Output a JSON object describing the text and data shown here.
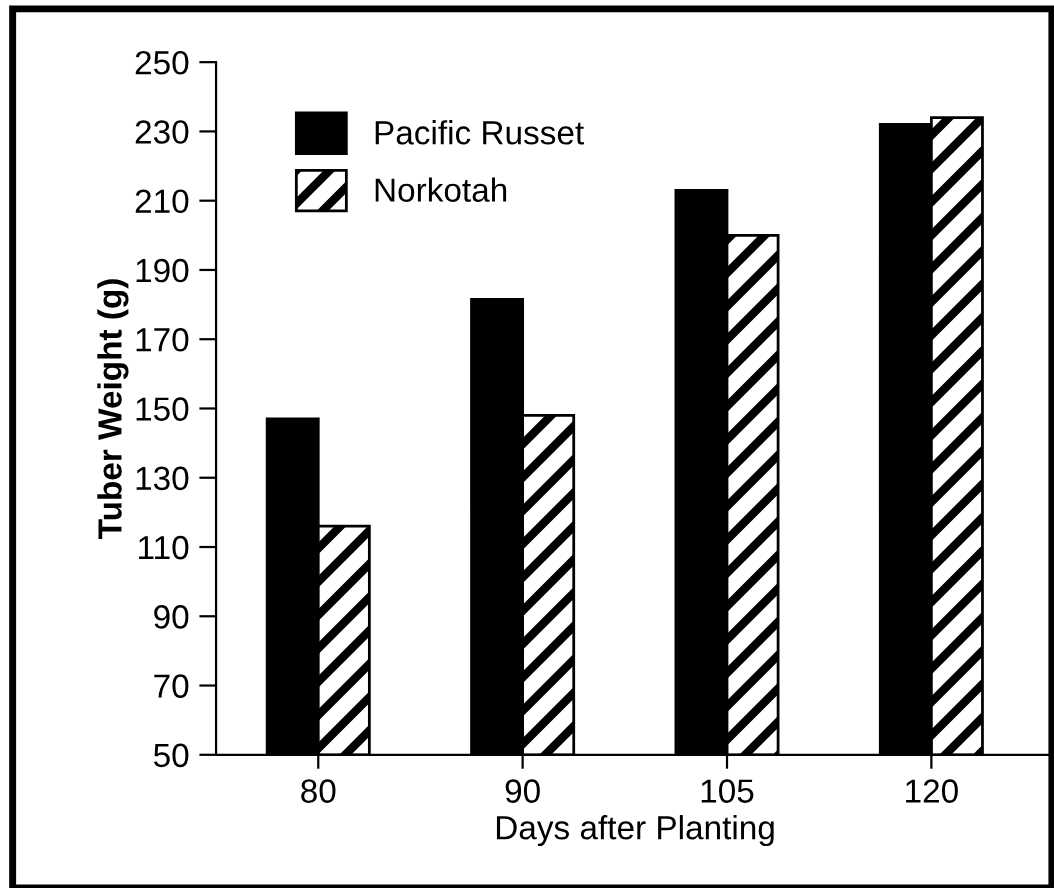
{
  "chart_data": {
    "type": "bar",
    "xlabel": "Days after Planting",
    "ylabel": "Tuber Weight (g)",
    "categories": [
      "80",
      "90",
      "105",
      "120"
    ],
    "series": [
      {
        "name": "Pacific Russet",
        "color": "#000000",
        "values": [
          147,
          181.5,
          213,
          232
        ]
      },
      {
        "name": "Norkotah",
        "color": "#000000",
        "values": [
          116,
          148,
          200,
          234
        ]
      }
    ],
    "ylim": [
      50,
      250
    ],
    "yticks": [
      50,
      70,
      90,
      110,
      130,
      150,
      170,
      190,
      210,
      230,
      250
    ],
    "grid": false,
    "legend": "top left"
  }
}
